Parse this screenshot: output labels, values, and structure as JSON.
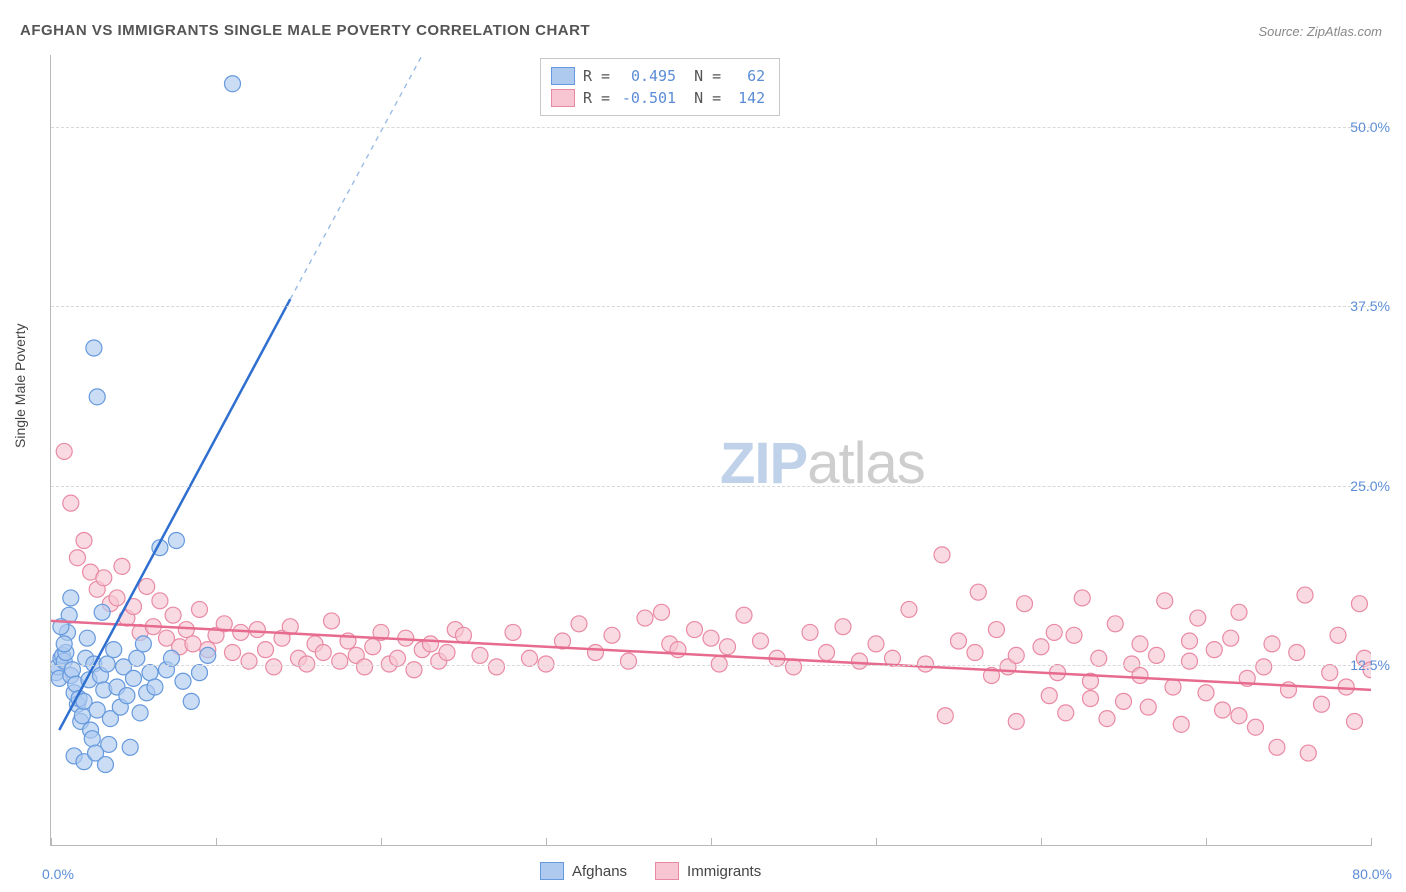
{
  "title": "AFGHAN VS IMMIGRANTS SINGLE MALE POVERTY CORRELATION CHART",
  "source": "Source: ZipAtlas.com",
  "watermark_zip": "ZIP",
  "watermark_atlas": "atlas",
  "y_axis_label": "Single Male Poverty",
  "chart": {
    "type": "scatter",
    "xlim": [
      0,
      80
    ],
    "ylim": [
      0,
      55
    ],
    "x_ticks": [
      0,
      10,
      20,
      30,
      40,
      50,
      60,
      70,
      80
    ],
    "y_ticks": [
      12.5,
      25.0,
      37.5,
      50.0
    ],
    "y_tick_labels": [
      "12.5%",
      "25.0%",
      "37.5%",
      "50.0%"
    ],
    "x_min_label": "0.0%",
    "x_max_label": "80.0%",
    "background_color": "#ffffff",
    "grid_color": "#d8d8d8",
    "marker_radius": 8,
    "marker_stroke_width": 1.2,
    "trend_line_width": 2.5
  },
  "series": {
    "afghans": {
      "label": "Afghans",
      "fill": "#aecbef",
      "stroke": "#6699dd",
      "trend_color": "#2f6fd0",
      "trend_dash_color": "#9bbce6",
      "R_label": "R =",
      "R": "0.495",
      "N_label": "N =",
      "N": "62",
      "trend": {
        "x1": 0.5,
        "y1": 8.0,
        "x2_solid": 14.5,
        "y2_solid": 38.0,
        "x2_dash": 22.5,
        "y2_dash": 55.0
      },
      "points": [
        [
          0.3,
          12.0
        ],
        [
          0.4,
          12.4
        ],
        [
          0.6,
          13.0
        ],
        [
          0.7,
          13.2
        ],
        [
          0.8,
          12.8
        ],
        [
          0.5,
          11.6
        ],
        [
          0.9,
          13.4
        ],
        [
          1.0,
          14.8
        ],
        [
          1.1,
          16.0
        ],
        [
          1.2,
          11.8
        ],
        [
          1.3,
          12.2
        ],
        [
          1.4,
          10.6
        ],
        [
          1.5,
          11.2
        ],
        [
          1.6,
          9.8
        ],
        [
          1.7,
          10.2
        ],
        [
          1.8,
          8.6
        ],
        [
          1.9,
          9.0
        ],
        [
          2.0,
          10.0
        ],
        [
          2.1,
          13.0
        ],
        [
          2.2,
          14.4
        ],
        [
          2.3,
          11.5
        ],
        [
          2.4,
          8.0
        ],
        [
          2.5,
          7.4
        ],
        [
          2.6,
          12.6
        ],
        [
          2.8,
          9.4
        ],
        [
          3.0,
          11.8
        ],
        [
          3.1,
          16.2
        ],
        [
          3.2,
          10.8
        ],
        [
          3.4,
          12.6
        ],
        [
          3.5,
          7.0
        ],
        [
          3.6,
          8.8
        ],
        [
          3.8,
          13.6
        ],
        [
          4.0,
          11.0
        ],
        [
          4.2,
          9.6
        ],
        [
          4.4,
          12.4
        ],
        [
          4.6,
          10.4
        ],
        [
          4.8,
          6.8
        ],
        [
          5.0,
          11.6
        ],
        [
          5.2,
          13.0
        ],
        [
          5.4,
          9.2
        ],
        [
          5.6,
          14.0
        ],
        [
          5.8,
          10.6
        ],
        [
          6.0,
          12.0
        ],
        [
          6.3,
          11.0
        ],
        [
          6.6,
          20.7
        ],
        [
          7.0,
          12.2
        ],
        [
          7.3,
          13.0
        ],
        [
          7.6,
          21.2
        ],
        [
          8.0,
          11.4
        ],
        [
          8.5,
          10.0
        ],
        [
          9.0,
          12.0
        ],
        [
          9.5,
          13.2
        ],
        [
          1.4,
          6.2
        ],
        [
          2.0,
          5.8
        ],
        [
          2.7,
          6.4
        ],
        [
          3.3,
          5.6
        ],
        [
          0.6,
          15.2
        ],
        [
          2.6,
          34.6
        ],
        [
          2.8,
          31.2
        ],
        [
          11.0,
          53.0
        ],
        [
          1.2,
          17.2
        ],
        [
          0.8,
          14.0
        ]
      ]
    },
    "immigrants": {
      "label": "Immigrants",
      "fill": "#f7c6d2",
      "stroke": "#e98aa4",
      "trend_color": "#e76b8e",
      "R_label": "R =",
      "R": "-0.501",
      "N_label": "N =",
      "N": "142",
      "trend": {
        "x1": 0.0,
        "y1": 15.6,
        "x2": 80.0,
        "y2": 10.8
      },
      "points": [
        [
          0.8,
          27.4
        ],
        [
          1.2,
          23.8
        ],
        [
          1.6,
          20.0
        ],
        [
          2.0,
          21.2
        ],
        [
          2.4,
          19.0
        ],
        [
          2.8,
          17.8
        ],
        [
          3.2,
          18.6
        ],
        [
          3.6,
          16.8
        ],
        [
          4.0,
          17.2
        ],
        [
          4.3,
          19.4
        ],
        [
          4.6,
          15.8
        ],
        [
          5.0,
          16.6
        ],
        [
          5.4,
          14.8
        ],
        [
          5.8,
          18.0
        ],
        [
          6.2,
          15.2
        ],
        [
          6.6,
          17.0
        ],
        [
          7.0,
          14.4
        ],
        [
          7.4,
          16.0
        ],
        [
          7.8,
          13.8
        ],
        [
          8.2,
          15.0
        ],
        [
          8.6,
          14.0
        ],
        [
          9.0,
          16.4
        ],
        [
          9.5,
          13.6
        ],
        [
          10.0,
          14.6
        ],
        [
          10.5,
          15.4
        ],
        [
          11.0,
          13.4
        ],
        [
          11.5,
          14.8
        ],
        [
          12.0,
          12.8
        ],
        [
          12.5,
          15.0
        ],
        [
          13.0,
          13.6
        ],
        [
          13.5,
          12.4
        ],
        [
          14.0,
          14.4
        ],
        [
          14.5,
          15.2
        ],
        [
          15.0,
          13.0
        ],
        [
          15.5,
          12.6
        ],
        [
          16.0,
          14.0
        ],
        [
          16.5,
          13.4
        ],
        [
          17.0,
          15.6
        ],
        [
          17.5,
          12.8
        ],
        [
          18.0,
          14.2
        ],
        [
          18.5,
          13.2
        ],
        [
          19.0,
          12.4
        ],
        [
          19.5,
          13.8
        ],
        [
          20.0,
          14.8
        ],
        [
          20.5,
          12.6
        ],
        [
          21.0,
          13.0
        ],
        [
          21.5,
          14.4
        ],
        [
          22.0,
          12.2
        ],
        [
          22.5,
          13.6
        ],
        [
          23.0,
          14.0
        ],
        [
          23.5,
          12.8
        ],
        [
          24.0,
          13.4
        ],
        [
          24.5,
          15.0
        ],
        [
          25.0,
          14.6
        ],
        [
          26.0,
          13.2
        ],
        [
          27.0,
          12.4
        ],
        [
          28.0,
          14.8
        ],
        [
          29.0,
          13.0
        ],
        [
          30.0,
          12.6
        ],
        [
          31.0,
          14.2
        ],
        [
          32.0,
          15.4
        ],
        [
          33.0,
          13.4
        ],
        [
          34.0,
          14.6
        ],
        [
          35.0,
          12.8
        ],
        [
          36.0,
          15.8
        ],
        [
          37.0,
          16.2
        ],
        [
          37.5,
          14.0
        ],
        [
          38.0,
          13.6
        ],
        [
          39.0,
          15.0
        ],
        [
          40.0,
          14.4
        ],
        [
          40.5,
          12.6
        ],
        [
          41.0,
          13.8
        ],
        [
          42.0,
          16.0
        ],
        [
          43.0,
          14.2
        ],
        [
          44.0,
          13.0
        ],
        [
          45.0,
          12.4
        ],
        [
          46.0,
          14.8
        ],
        [
          47.0,
          13.4
        ],
        [
          48.0,
          15.2
        ],
        [
          49.0,
          12.8
        ],
        [
          50.0,
          14.0
        ],
        [
          51.0,
          13.0
        ],
        [
          52.0,
          16.4
        ],
        [
          53.0,
          12.6
        ],
        [
          54.0,
          20.2
        ],
        [
          54.2,
          9.0
        ],
        [
          55.0,
          14.2
        ],
        [
          56.0,
          13.4
        ],
        [
          56.2,
          17.6
        ],
        [
          57.0,
          11.8
        ],
        [
          57.3,
          15.0
        ],
        [
          58.0,
          12.4
        ],
        [
          58.5,
          8.6
        ],
        [
          59.0,
          16.8
        ],
        [
          60.0,
          13.8
        ],
        [
          60.5,
          10.4
        ],
        [
          61.0,
          12.0
        ],
        [
          61.5,
          9.2
        ],
        [
          62.0,
          14.6
        ],
        [
          62.5,
          17.2
        ],
        [
          63.0,
          11.4
        ],
        [
          63.5,
          13.0
        ],
        [
          64.0,
          8.8
        ],
        [
          64.5,
          15.4
        ],
        [
          65.0,
          10.0
        ],
        [
          65.5,
          12.6
        ],
        [
          66.0,
          14.0
        ],
        [
          66.5,
          9.6
        ],
        [
          67.0,
          13.2
        ],
        [
          67.5,
          17.0
        ],
        [
          68.0,
          11.0
        ],
        [
          68.5,
          8.4
        ],
        [
          69.0,
          12.8
        ],
        [
          69.5,
          15.8
        ],
        [
          70.0,
          10.6
        ],
        [
          70.5,
          13.6
        ],
        [
          71.0,
          9.4
        ],
        [
          71.5,
          14.4
        ],
        [
          72.0,
          16.2
        ],
        [
          72.5,
          11.6
        ],
        [
          73.0,
          8.2
        ],
        [
          73.5,
          12.4
        ],
        [
          74.0,
          14.0
        ],
        [
          74.3,
          6.8
        ],
        [
          75.0,
          10.8
        ],
        [
          75.5,
          13.4
        ],
        [
          76.0,
          17.4
        ],
        [
          76.2,
          6.4
        ],
        [
          77.0,
          9.8
        ],
        [
          77.5,
          12.0
        ],
        [
          78.0,
          14.6
        ],
        [
          78.5,
          11.0
        ],
        [
          79.0,
          8.6
        ],
        [
          79.3,
          16.8
        ],
        [
          79.6,
          13.0
        ],
        [
          80.0,
          12.2
        ],
        [
          58.5,
          13.2
        ],
        [
          60.8,
          14.8
        ],
        [
          63.0,
          10.2
        ],
        [
          66.0,
          11.8
        ],
        [
          69.0,
          14.2
        ],
        [
          72.0,
          9.0
        ]
      ]
    }
  }
}
